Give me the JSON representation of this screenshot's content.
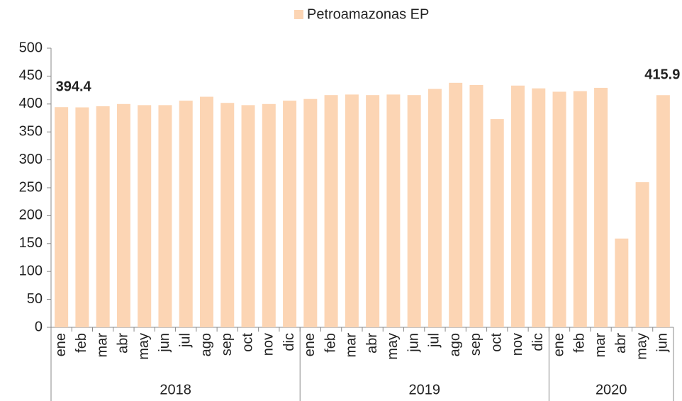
{
  "chart_data": {
    "type": "bar",
    "legend": "Petroamazonas EP",
    "color": "#fcd5b4",
    "categories": [
      "ene",
      "feb",
      "mar",
      "abr",
      "may",
      "jun",
      "jul",
      "ago",
      "sep",
      "oct",
      "nov",
      "dic",
      "ene",
      "feb",
      "mar",
      "abr",
      "may",
      "jun",
      "jul",
      "ago",
      "sep",
      "oct",
      "nov",
      "dic",
      "ene",
      "feb",
      "mar",
      "abr",
      "may",
      "jun"
    ],
    "values": [
      394.4,
      394,
      396,
      400,
      398,
      398,
      406,
      413,
      402,
      398,
      400,
      406,
      409,
      416,
      417,
      416,
      417,
      416,
      427,
      438,
      434,
      373,
      433,
      428,
      422,
      423,
      429,
      159,
      260,
      415.9
    ],
    "value_labels": [
      "394.4",
      null,
      null,
      null,
      null,
      null,
      null,
      null,
      null,
      null,
      null,
      null,
      null,
      null,
      null,
      null,
      null,
      null,
      null,
      null,
      null,
      null,
      null,
      null,
      null,
      null,
      null,
      null,
      null,
      "415.9"
    ],
    "groups": [
      {
        "name": "2018",
        "span": 12
      },
      {
        "name": "2019",
        "span": 12
      },
      {
        "name": "2020",
        "span": 6
      }
    ],
    "ylim": [
      0,
      500
    ],
    "yticks": [
      0,
      50,
      100,
      150,
      200,
      250,
      300,
      350,
      400,
      450,
      500
    ]
  }
}
